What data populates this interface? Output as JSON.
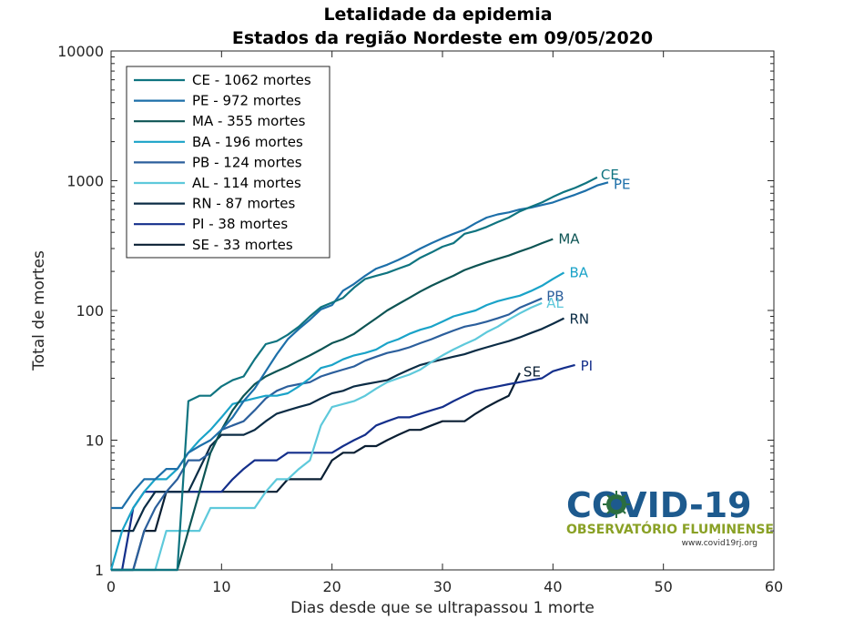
{
  "chart_data": {
    "type": "line",
    "title": "Letalidade da epidemia",
    "subtitle": "Estados da região Nordeste  em 09/05/2020",
    "xlabel": "Dias desde que se ultrapassou 1 morte",
    "ylabel": "Total de mortes",
    "xlim": [
      0,
      60
    ],
    "ylim": [
      1,
      10000
    ],
    "yscale": "log",
    "grid": false,
    "legend_position": "top-left",
    "xticks": [
      "0",
      "10",
      "20",
      "30",
      "40",
      "50",
      "60"
    ],
    "yticks": [
      "1",
      "10",
      "100",
      "1000",
      "10000"
    ],
    "series": [
      {
        "name": "CE - 1062 mortes",
        "label": "CE",
        "color": "#0f7480",
        "x": [
          0,
          1,
          2,
          3,
          4,
          5,
          6,
          7,
          8,
          9,
          10,
          11,
          12,
          13,
          14,
          15,
          16,
          17,
          18,
          19,
          20,
          21,
          22,
          23,
          24,
          25,
          26,
          27,
          28,
          29,
          30,
          31,
          32,
          33,
          34,
          35,
          36,
          37,
          38,
          39,
          40,
          41,
          42,
          43,
          44
        ],
        "y": [
          1,
          1,
          1,
          1,
          1,
          1,
          1,
          20,
          22,
          22,
          26,
          29,
          31,
          42,
          55,
          58,
          65,
          75,
          90,
          106,
          115,
          125,
          150,
          175,
          185,
          195,
          210,
          225,
          255,
          280,
          310,
          330,
          390,
          410,
          440,
          480,
          520,
          580,
          630,
          680,
          750,
          820,
          880,
          960,
          1062
        ]
      },
      {
        "name": "PE - 972 mortes",
        "label": "PE",
        "color": "#1d6fa9",
        "x": [
          0,
          1,
          2,
          3,
          4,
          5,
          6,
          7,
          8,
          9,
          10,
          11,
          12,
          13,
          14,
          15,
          16,
          17,
          18,
          19,
          20,
          21,
          22,
          23,
          24,
          25,
          26,
          27,
          28,
          29,
          30,
          31,
          32,
          33,
          34,
          35,
          36,
          37,
          38,
          39,
          40,
          41,
          42,
          43,
          44,
          45
        ],
        "y": [
          3,
          3,
          4,
          5,
          5,
          6,
          6,
          8,
          9,
          10,
          12,
          15,
          20,
          25,
          34,
          46,
          60,
          72,
          85,
          102,
          110,
          142,
          160,
          185,
          210,
          225,
          245,
          270,
          300,
          330,
          360,
          390,
          420,
          470,
          520,
          550,
          570,
          600,
          620,
          650,
          680,
          730,
          780,
          840,
          920,
          972
        ]
      },
      {
        "name": "MA - 355 mortes",
        "label": "MA",
        "color": "#0d5454",
        "x": [
          0,
          1,
          2,
          3,
          4,
          5,
          6,
          7,
          8,
          9,
          10,
          11,
          12,
          13,
          14,
          15,
          16,
          17,
          18,
          19,
          20,
          21,
          22,
          23,
          24,
          25,
          26,
          27,
          28,
          29,
          30,
          31,
          32,
          33,
          34,
          35,
          36,
          37,
          38,
          39,
          40
        ],
        "y": [
          1,
          1,
          1,
          1,
          1,
          1,
          1,
          2,
          4,
          8,
          12,
          17,
          22,
          27,
          31,
          34,
          37,
          41,
          45,
          50,
          56,
          60,
          66,
          76,
          87,
          100,
          112,
          125,
          140,
          155,
          170,
          185,
          205,
          220,
          235,
          250,
          265,
          285,
          305,
          330,
          355
        ]
      },
      {
        "name": "BA - 196 mortes",
        "label": "BA",
        "color": "#1aa3c8",
        "x": [
          0,
          1,
          2,
          3,
          4,
          5,
          6,
          7,
          8,
          9,
          10,
          11,
          12,
          13,
          14,
          15,
          16,
          17,
          18,
          19,
          20,
          21,
          22,
          23,
          24,
          25,
          26,
          27,
          28,
          29,
          30,
          31,
          32,
          33,
          34,
          35,
          36,
          37,
          38,
          39,
          40,
          41
        ],
        "y": [
          1,
          2,
          3,
          4,
          5,
          5,
          6,
          8,
          10,
          12,
          15,
          19,
          20,
          21,
          22,
          22,
          23,
          26,
          30,
          36,
          38,
          42,
          45,
          47,
          50,
          56,
          60,
          66,
          71,
          75,
          82,
          90,
          95,
          100,
          110,
          118,
          124,
          130,
          141,
          155,
          175,
          196
        ]
      },
      {
        "name": "PB - 124 mortes",
        "label": "PB",
        "color": "#2c5f9c",
        "x": [
          0,
          1,
          2,
          3,
          4,
          5,
          6,
          7,
          8,
          9,
          10,
          11,
          12,
          13,
          14,
          15,
          16,
          17,
          18,
          19,
          20,
          21,
          22,
          23,
          24,
          25,
          26,
          27,
          28,
          29,
          30,
          31,
          32,
          33,
          34,
          35,
          36,
          37,
          38,
          39
        ],
        "y": [
          1,
          1,
          1,
          2,
          3,
          4,
          5,
          7,
          7,
          8,
          12,
          13,
          14,
          17,
          21,
          24,
          26,
          27,
          28,
          31,
          33,
          35,
          37,
          41,
          44,
          47,
          49,
          52,
          56,
          60,
          65,
          70,
          75,
          78,
          82,
          87,
          93,
          105,
          114,
          124
        ]
      },
      {
        "name": "AL - 114 mortes",
        "label": "AL",
        "color": "#5ec9db",
        "x": [
          0,
          1,
          2,
          3,
          4,
          5,
          6,
          7,
          8,
          9,
          10,
          11,
          12,
          13,
          14,
          15,
          16,
          17,
          18,
          19,
          20,
          21,
          22,
          23,
          24,
          25,
          26,
          27,
          28,
          29,
          30,
          31,
          32,
          33,
          34,
          35,
          36,
          37,
          38,
          39
        ],
        "y": [
          1,
          1,
          1,
          1,
          1,
          2,
          2,
          2,
          2,
          3,
          3,
          3,
          3,
          3,
          4,
          5,
          5,
          6,
          7,
          13,
          18,
          19,
          20,
          22,
          25,
          28,
          30,
          32,
          35,
          40,
          45,
          50,
          55,
          60,
          68,
          75,
          85,
          95,
          105,
          114
        ]
      },
      {
        "name": "RN - 87 mortes",
        "label": "RN",
        "color": "#0b2c45",
        "x": [
          0,
          1,
          2,
          3,
          4,
          5,
          6,
          7,
          8,
          9,
          10,
          11,
          12,
          13,
          14,
          15,
          16,
          17,
          18,
          19,
          20,
          21,
          22,
          23,
          24,
          25,
          26,
          27,
          28,
          29,
          30,
          31,
          32,
          33,
          34,
          35,
          36,
          37,
          38,
          39,
          40,
          41
        ],
        "y": [
          2,
          2,
          2,
          3,
          4,
          4,
          4,
          4,
          6,
          9,
          11,
          11,
          11,
          12,
          14,
          16,
          17,
          18,
          19,
          21,
          23,
          24,
          26,
          27,
          28,
          29,
          32,
          35,
          38,
          40,
          42,
          44,
          46,
          49,
          52,
          55,
          58,
          62,
          67,
          72,
          79,
          87
        ]
      },
      {
        "name": "PI - 38 mortes",
        "label": "PI",
        "color": "#142f8b",
        "x": [
          0,
          1,
          2,
          3,
          4,
          5,
          6,
          7,
          8,
          9,
          10,
          11,
          12,
          13,
          14,
          15,
          16,
          17,
          18,
          19,
          20,
          21,
          22,
          23,
          24,
          25,
          26,
          27,
          28,
          29,
          30,
          31,
          32,
          33,
          34,
          35,
          36,
          37,
          38,
          39,
          40,
          41,
          42
        ],
        "y": [
          1,
          1,
          3,
          4,
          4,
          4,
          4,
          4,
          4,
          4,
          4,
          5,
          6,
          7,
          7,
          7,
          8,
          8,
          8,
          8,
          8,
          9,
          10,
          11,
          13,
          14,
          15,
          15,
          16,
          17,
          18,
          20,
          22,
          24,
          25,
          26,
          27,
          28,
          29,
          30,
          34,
          36,
          38
        ]
      },
      {
        "name": "SE - 33 mortes",
        "label": "SE",
        "color": "#0a1f33",
        "x": [
          0,
          1,
          2,
          3,
          4,
          5,
          6,
          7,
          8,
          9,
          10,
          11,
          12,
          13,
          14,
          15,
          16,
          17,
          18,
          19,
          20,
          21,
          22,
          23,
          24,
          25,
          26,
          27,
          28,
          29,
          30,
          31,
          32,
          33,
          34,
          35,
          36,
          37
        ],
        "y": [
          1,
          1,
          1,
          2,
          2,
          4,
          4,
          4,
          4,
          4,
          4,
          4,
          4,
          4,
          4,
          4,
          5,
          5,
          5,
          5,
          7,
          8,
          8,
          9,
          9,
          10,
          11,
          12,
          12,
          13,
          14,
          14,
          14,
          16,
          18,
          20,
          22,
          33
        ]
      }
    ]
  },
  "logo": {
    "line1": "COVID-19",
    "line2": "OBSERVATÓRIO FLUMINENSE",
    "url": "www.covid19rj.org"
  }
}
